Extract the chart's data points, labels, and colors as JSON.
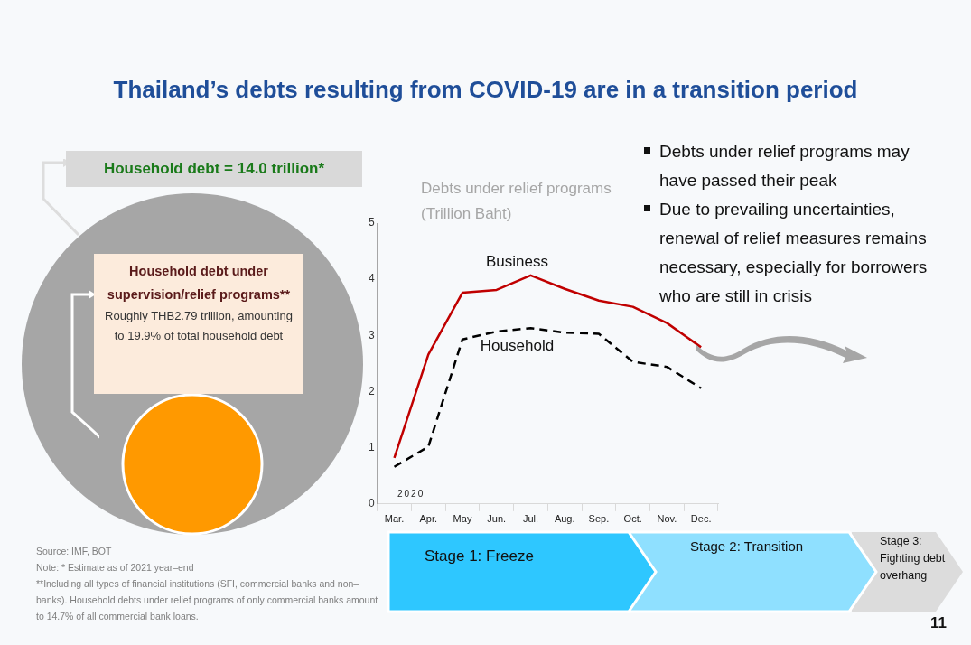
{
  "chart_data": [
    {
      "type": "other",
      "title": "Household debt = 14.0 trillion*",
      "subtitle": "Household debt under supervision/relief programs**",
      "annotations": [
        "Roughly THB2.79 trillion, amounting to 19.9% of total household debt",
        "Source: IMF, BOT",
        "Note: * Estimate as of 2021 year–end",
        "**Including all types of financial institutions (SFI, commercial banks and non–banks). Household debts under relief programs of only commercial banks amount to 14.7% of all commercial bank loans."
      ]
    },
    {
      "type": "line",
      "title": "Thailand’s debts resulting from COVID-19 are in a transition period",
      "ylabel": "Debts under relief programs (Trillion Baht)",
      "categories": [
        "Mar.",
        "Apr.",
        "May",
        "Jun.",
        "Jul.",
        "Aug.",
        "Sep.",
        "Oct.",
        "Nov.",
        "Dec."
      ],
      "series": [
        {
          "name": "Business",
          "color": "#c00000",
          "line_style": "solid",
          "values": [
            0.82,
            2.66,
            3.76,
            3.81,
            4.07,
            3.83,
            3.62,
            3.51,
            3.22,
            2.79
          ]
        },
        {
          "name": "Household",
          "color": "#000000",
          "line_style": "dashed",
          "values": [
            0.66,
            1.02,
            2.93,
            3.07,
            3.13,
            3.05,
            3.03,
            2.53,
            2.44,
            2.06
          ]
        }
      ],
      "ylim": [
        0,
        5
      ],
      "yticks": [
        0,
        1,
        2,
        3,
        4,
        5
      ],
      "grid": false,
      "legend": false,
      "marker": "none",
      "annotations": [
        "Debts under relief programs may have passed their peak",
        "Due to prevailing uncertainties, renewal of relief measures remains necessary, especially for borrowers who are still in crisis",
        "Stage 1: Freeze",
        "Stage 2: Transition",
        "Stage 3: Fighting debt overhang",
        "2020",
        "11"
      ]
    }
  ]
}
